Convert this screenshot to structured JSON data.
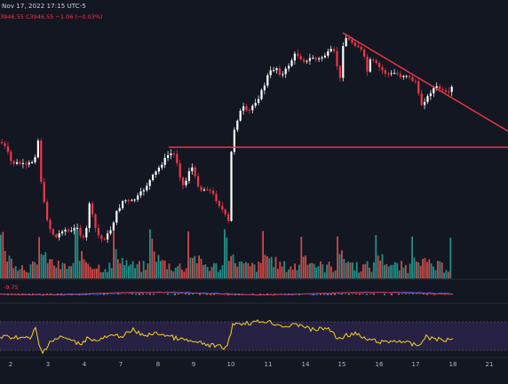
{
  "header": {
    "date": "Nov 17, 2022 17:15 UTC-5",
    "ohlc": "3946.55  C3946.55  −1.06 (−0.03%)"
  },
  "indicator": {
    "macd_label": "-9.75"
  },
  "colors": {
    "background": "#131722",
    "up": "#ffffff",
    "down": "#f23645",
    "volume_up": "#26a69a",
    "volume_down": "#ef5350",
    "trendline": "#f23645",
    "oscillator": "#f7d21c",
    "oscillator_band": "#2a2448"
  },
  "chart_data": [
    {
      "type": "candlestick",
      "x_ticks": [
        "2",
        "3",
        "4",
        "7",
        "8",
        "9",
        "10",
        "11",
        "14",
        "15",
        "16",
        "17",
        "18",
        "21"
      ],
      "annotations": [
        "horizontal resistance line",
        "descending trendline"
      ],
      "grid": false
    },
    {
      "type": "bar",
      "name": "volume",
      "grid": false
    },
    {
      "type": "line",
      "name": "macd",
      "value_label": "-9.75",
      "grid": false
    },
    {
      "type": "line",
      "name": "oscillator",
      "band": "shaded",
      "grid": false
    }
  ]
}
